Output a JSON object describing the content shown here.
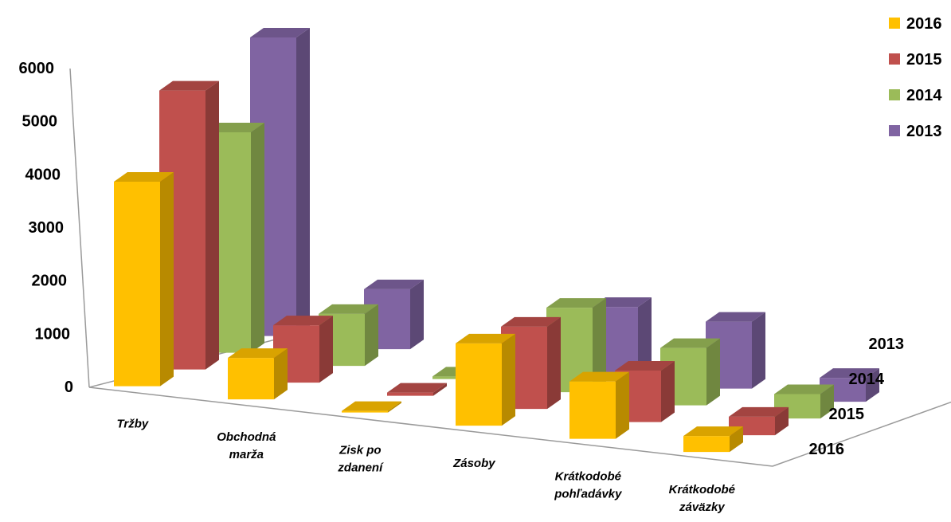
{
  "chart_data": {
    "type": "bar",
    "subtype": "3d-column",
    "categories": [
      [
        "Tržby"
      ],
      [
        "Obchodná",
        "marža"
      ],
      [
        "Zisk po",
        "zdanení"
      ],
      [
        "Zásoby"
      ],
      [
        "Krátkodobé",
        "pohľadávky"
      ],
      [
        "Krátkodobé",
        "záväzky"
      ]
    ],
    "series": [
      {
        "name": "2016",
        "color": "#FFC000",
        "values": [
          3850,
          780,
          30,
          1550,
          1080,
          300
        ]
      },
      {
        "name": "2015",
        "color": "#C0504D",
        "values": [
          5250,
          1080,
          60,
          1550,
          970,
          350
        ]
      },
      {
        "name": "2014",
        "color": "#9BBB59",
        "values": [
          4150,
          980,
          50,
          1590,
          1080,
          460
        ]
      },
      {
        "name": "2013",
        "color": "#8064A2",
        "values": [
          5620,
          1130,
          60,
          1290,
          1260,
          450
        ]
      }
    ],
    "depth_labels": [
      "2013",
      "2014",
      "2015",
      "2016"
    ],
    "y_ticks": [
      "0",
      "1000",
      "2000",
      "3000",
      "4000",
      "5000",
      "6000"
    ],
    "ylim": [
      0,
      6000
    ],
    "legend": {
      "position": "top-right",
      "entries": [
        "2016",
        "2015",
        "2014",
        "2013"
      ]
    },
    "grid": false
  }
}
